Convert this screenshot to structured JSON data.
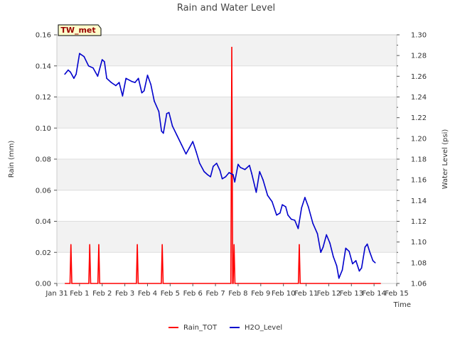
{
  "chart_data": {
    "type": "line",
    "title": "Rain and Water Level",
    "station_badge": "TW_met",
    "xlabel": "Time",
    "ylabel_left": "Rain (mm)",
    "ylabel_right": "Water Level (psi)",
    "x_ticks": [
      "Jan 31",
      "Feb 1",
      "Feb 2",
      "Feb 3",
      "Feb 4",
      "Feb 5",
      "Feb 6",
      "Feb 7",
      "Feb 8",
      "Feb 9",
      "Feb 10",
      "Feb 11",
      "Feb 12",
      "Feb 13",
      "Feb 14",
      "Feb 15"
    ],
    "x_range_days": [
      0,
      15
    ],
    "ylim_left": [
      0.0,
      0.16
    ],
    "ylim_right": [
      1.06,
      1.3
    ],
    "y_ticks_left": [
      "0.00",
      "0.02",
      "0.04",
      "0.06",
      "0.08",
      "0.10",
      "0.12",
      "0.14",
      "0.16"
    ],
    "y_ticks_right": [
      "1.06",
      "1.08",
      "1.10",
      "1.12",
      "1.14",
      "1.16",
      "1.18",
      "1.20",
      "1.22",
      "1.24",
      "1.26",
      "1.28",
      "1.30"
    ],
    "grid": true,
    "legend_position": "bottom",
    "series": [
      {
        "name": "Rain_TOT",
        "color": "#ff0000",
        "axis": "left",
        "spikes": [
          {
            "day": 0.62,
            "value": 0.025
          },
          {
            "day": 1.45,
            "value": 0.025
          },
          {
            "day": 1.85,
            "value": 0.025
          },
          {
            "day": 3.55,
            "value": 0.025
          },
          {
            "day": 4.65,
            "value": 0.025
          },
          {
            "day": 7.72,
            "value": 0.152
          },
          {
            "day": 7.82,
            "value": 0.025
          },
          {
            "day": 10.7,
            "value": 0.025
          }
        ],
        "x_end_day": 14.3
      },
      {
        "name": "H2O_Level",
        "color": "#0000cc",
        "axis": "right",
        "points": [
          [
            0.35,
            1.262
          ],
          [
            0.5,
            1.266
          ],
          [
            0.6,
            1.264
          ],
          [
            0.75,
            1.258
          ],
          [
            0.85,
            1.262
          ],
          [
            1.0,
            1.282
          ],
          [
            1.2,
            1.279
          ],
          [
            1.4,
            1.27
          ],
          [
            1.6,
            1.268
          ],
          [
            1.8,
            1.26
          ],
          [
            2.0,
            1.276
          ],
          [
            2.1,
            1.274
          ],
          [
            2.2,
            1.258
          ],
          [
            2.4,
            1.254
          ],
          [
            2.6,
            1.251
          ],
          [
            2.75,
            1.254
          ],
          [
            2.9,
            1.241
          ],
          [
            3.05,
            1.258
          ],
          [
            3.3,
            1.255
          ],
          [
            3.45,
            1.254
          ],
          [
            3.6,
            1.258
          ],
          [
            3.75,
            1.244
          ],
          [
            3.85,
            1.246
          ],
          [
            4.0,
            1.261
          ],
          [
            4.15,
            1.252
          ],
          [
            4.3,
            1.236
          ],
          [
            4.5,
            1.226
          ],
          [
            4.62,
            1.207
          ],
          [
            4.7,
            1.205
          ],
          [
            4.85,
            1.224
          ],
          [
            4.95,
            1.225
          ],
          [
            5.1,
            1.212
          ],
          [
            5.3,
            1.203
          ],
          [
            5.5,
            1.194
          ],
          [
            5.7,
            1.185
          ],
          [
            5.85,
            1.191
          ],
          [
            6.0,
            1.197
          ],
          [
            6.15,
            1.187
          ],
          [
            6.3,
            1.176
          ],
          [
            6.5,
            1.168
          ],
          [
            6.65,
            1.165
          ],
          [
            6.78,
            1.163
          ],
          [
            6.9,
            1.173
          ],
          [
            7.05,
            1.176
          ],
          [
            7.2,
            1.169
          ],
          [
            7.3,
            1.161
          ],
          [
            7.45,
            1.163
          ],
          [
            7.6,
            1.167
          ],
          [
            7.78,
            1.165
          ],
          [
            7.85,
            1.158
          ],
          [
            8.0,
            1.175
          ],
          [
            8.1,
            1.172
          ],
          [
            8.3,
            1.17
          ],
          [
            8.5,
            1.174
          ],
          [
            8.6,
            1.166
          ],
          [
            8.8,
            1.148
          ],
          [
            8.95,
            1.168
          ],
          [
            9.1,
            1.16
          ],
          [
            9.3,
            1.145
          ],
          [
            9.5,
            1.139
          ],
          [
            9.7,
            1.126
          ],
          [
            9.85,
            1.128
          ],
          [
            9.95,
            1.136
          ],
          [
            10.1,
            1.134
          ],
          [
            10.2,
            1.126
          ],
          [
            10.35,
            1.122
          ],
          [
            10.5,
            1.121
          ],
          [
            10.65,
            1.113
          ],
          [
            10.8,
            1.133
          ],
          [
            10.95,
            1.143
          ],
          [
            11.1,
            1.134
          ],
          [
            11.3,
            1.118
          ],
          [
            11.5,
            1.108
          ],
          [
            11.65,
            1.09
          ],
          [
            11.75,
            1.095
          ],
          [
            11.9,
            1.107
          ],
          [
            12.05,
            1.099
          ],
          [
            12.2,
            1.086
          ],
          [
            12.35,
            1.077
          ],
          [
            12.45,
            1.065
          ],
          [
            12.6,
            1.073
          ],
          [
            12.75,
            1.094
          ],
          [
            12.9,
            1.091
          ],
          [
            13.05,
            1.079
          ],
          [
            13.2,
            1.082
          ],
          [
            13.35,
            1.072
          ],
          [
            13.45,
            1.075
          ],
          [
            13.6,
            1.095
          ],
          [
            13.7,
            1.098
          ],
          [
            13.8,
            1.091
          ],
          [
            13.95,
            1.082
          ],
          [
            14.05,
            1.08
          ]
        ]
      }
    ]
  }
}
